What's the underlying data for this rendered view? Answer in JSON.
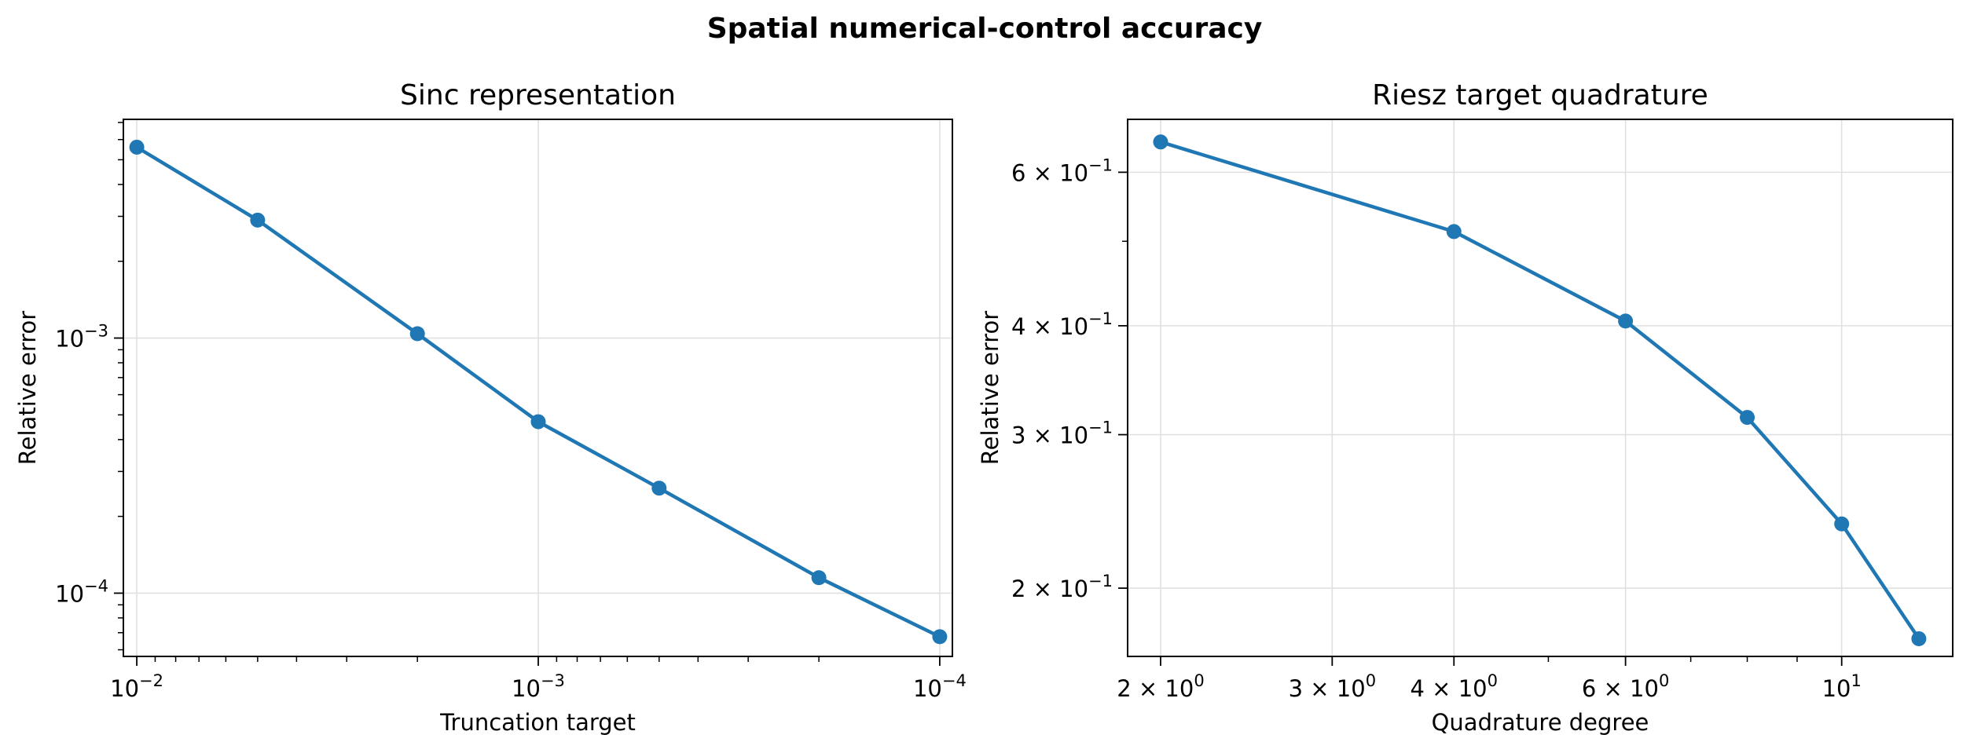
{
  "title": "Spatial numerical-control accuracy",
  "colors": {
    "line": "#1f77b4",
    "grid": "#e0e0e0",
    "axes": "#000000"
  },
  "chart_data": [
    {
      "type": "line",
      "title": "Sinc representation",
      "xlabel": "Truncation target",
      "ylabel": "Relative error",
      "xscale": "log",
      "yscale": "log",
      "x_inverted": true,
      "grid": true,
      "xlim": [
        0.0108,
        9.3e-05
      ],
      "ylim": [
        5.65e-05,
        0.0072
      ],
      "xticks": [
        {
          "value": 0.01,
          "base": "10",
          "exp": "−2"
        },
        {
          "value": 0.001,
          "base": "10",
          "exp": "−3"
        },
        {
          "value": 0.0001,
          "base": "10",
          "exp": "−4"
        }
      ],
      "yticks": [
        {
          "value": 0.001,
          "base": "10",
          "exp": "−3"
        },
        {
          "value": 0.0001,
          "base": "10",
          "exp": "−4"
        }
      ],
      "series": [
        {
          "x": [
            0.01,
            0.005,
            0.002,
            0.001,
            0.0005,
            0.0002,
            0.0001
          ],
          "y": [
            0.0056,
            0.0029,
            0.00104,
            0.00047,
            0.000258,
            0.000115,
            6.75e-05
          ]
        }
      ]
    },
    {
      "type": "line",
      "title": "Riesz target quadrature",
      "xlabel": "Quadrature degree",
      "ylabel": "Relative error",
      "xscale": "log",
      "yscale": "log",
      "grid": true,
      "xlim": [
        1.85,
        13.0
      ],
      "ylim": [
        0.167,
        0.69
      ],
      "xticks": [
        {
          "value": 2,
          "base": "2 × 10",
          "exp": "0"
        },
        {
          "value": 3,
          "base": "3 × 10",
          "exp": "0"
        },
        {
          "value": 4,
          "base": "4 × 10",
          "exp": "0"
        },
        {
          "value": 6,
          "base": "6 × 10",
          "exp": "0"
        },
        {
          "value": 10,
          "base": "10",
          "exp": "1"
        }
      ],
      "yticks": [
        {
          "value": 0.2,
          "base": "2 × 10",
          "exp": "−1"
        },
        {
          "value": 0.3,
          "base": "3 × 10",
          "exp": "−1"
        },
        {
          "value": 0.4,
          "base": "4 × 10",
          "exp": "−1"
        },
        {
          "value": 0.6,
          "base": "6 × 10",
          "exp": "−1"
        }
      ],
      "series": [
        {
          "x": [
            2,
            4,
            6,
            8,
            10,
            12
          ],
          "y": [
            0.65,
            0.513,
            0.405,
            0.314,
            0.237,
            0.175
          ]
        }
      ]
    }
  ]
}
